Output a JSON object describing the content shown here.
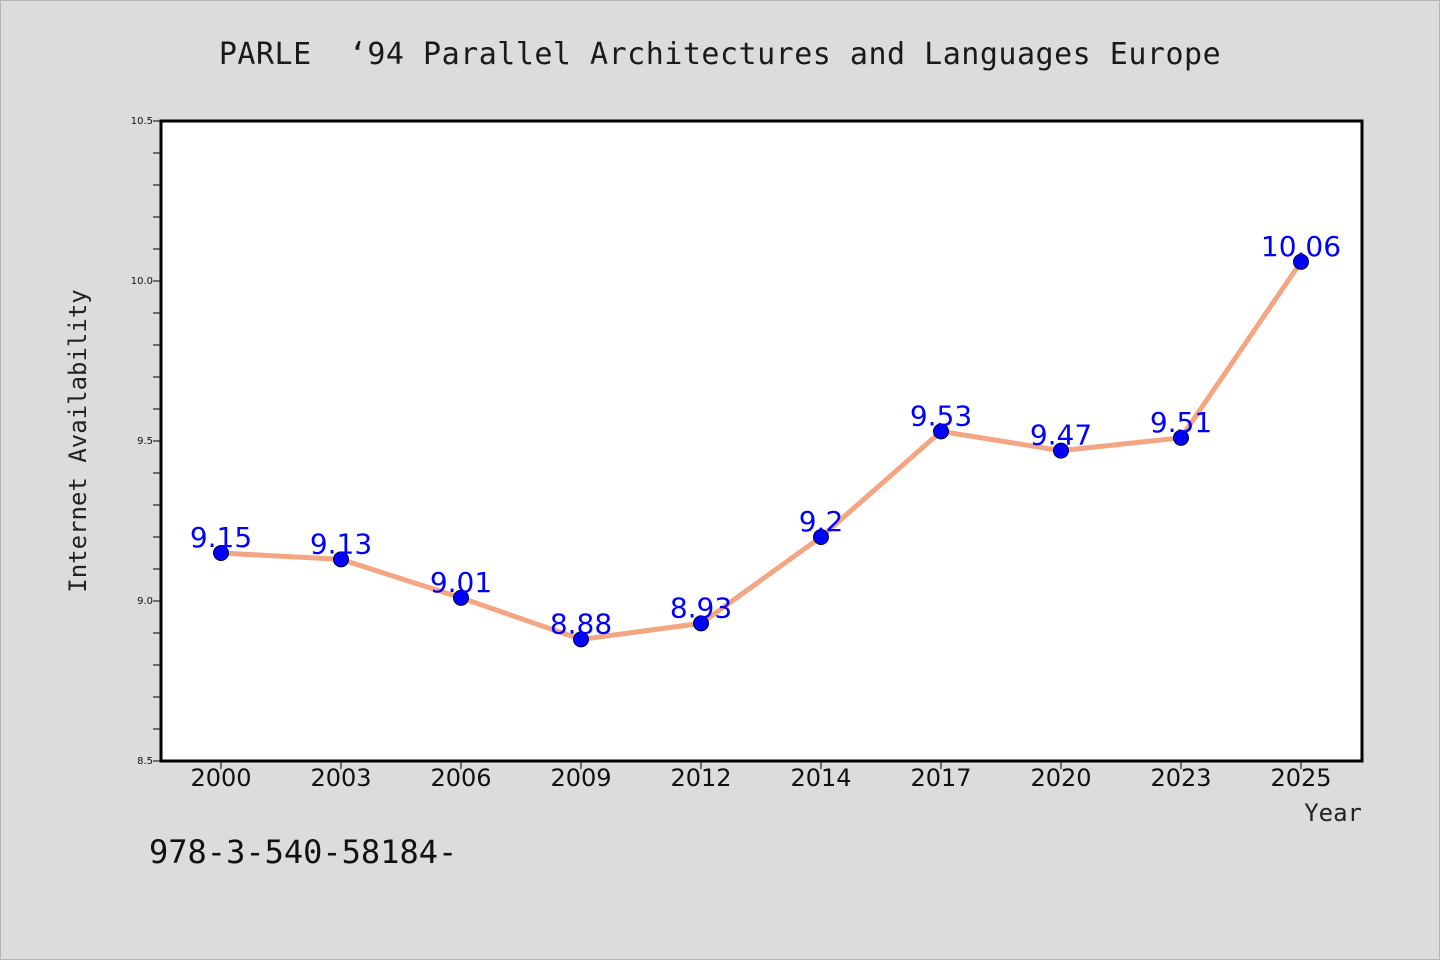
{
  "title": "PARLE  ‘94 Parallel Architectures and Languages Europe",
  "footer_text": "978-3-540-58184-",
  "colors": {
    "background": "#dcdcdc",
    "plot_background": "#ffffff",
    "line": "#f4a582",
    "marker": "#0000ff",
    "data_label": "#0000ff"
  },
  "chart_data": {
    "type": "line",
    "title": "PARLE  ‘94 Parallel Architectures and Languages Europe",
    "xlabel": "Year",
    "ylabel": "Internet Availability",
    "categories": [
      "2000",
      "2003",
      "2006",
      "2009",
      "2012",
      "2014",
      "2017",
      "2020",
      "2023",
      "2025"
    ],
    "series": [
      {
        "values": [
          9.15,
          9.13,
          9.01,
          8.88,
          8.93,
          9.2,
          9.53,
          9.47,
          9.51,
          10.06
        ],
        "data_labels": [
          "9.15",
          "9.13",
          "9.01",
          "8.88",
          "8.93",
          "9.2",
          "9.53",
          "9.47",
          "9.51",
          "10.06"
        ]
      }
    ],
    "ylim": [
      8.5,
      10.5
    ],
    "yticks": [
      "8.5",
      "9.0",
      "9.5",
      "10.0",
      "10.5"
    ],
    "grid": false,
    "legend": "none",
    "marker": "circle"
  }
}
